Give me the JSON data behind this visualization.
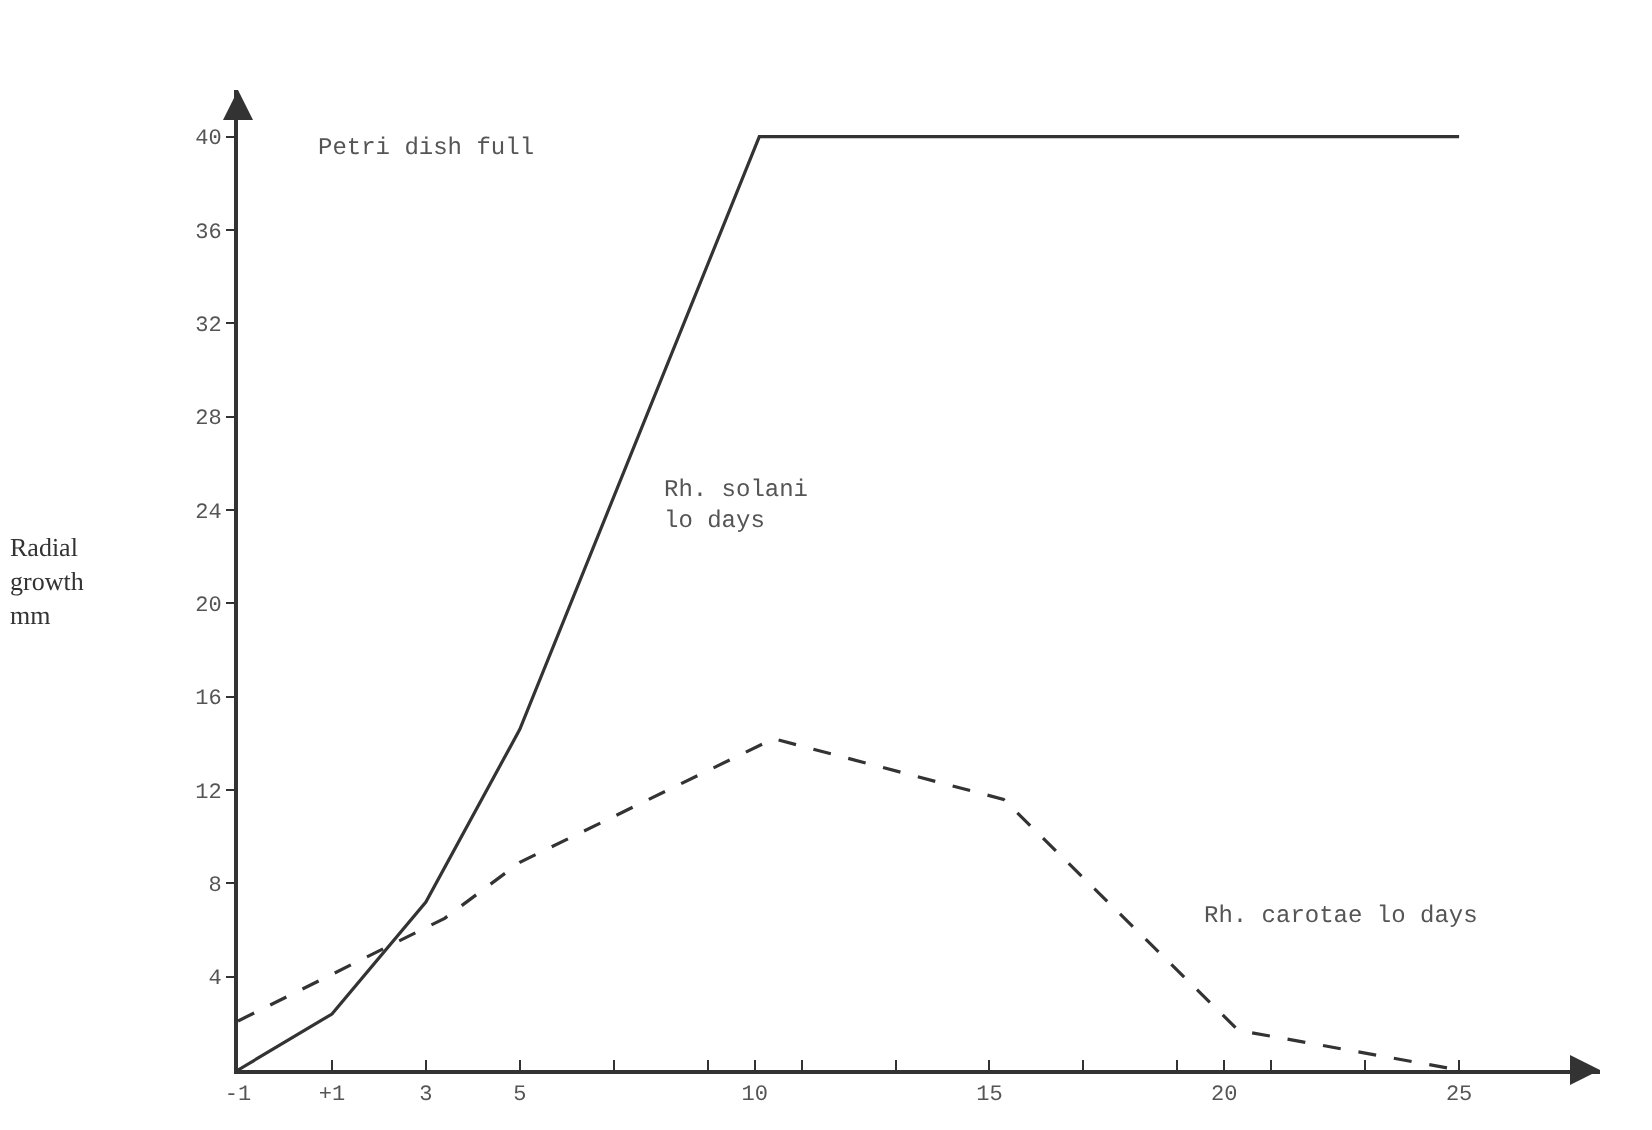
{
  "chart_data": {
    "type": "line",
    "ylabel": "Radial\ngrowth\nmm",
    "xlim": [
      -1,
      28
    ],
    "ylim": [
      0,
      42
    ],
    "xticks": [
      -1,
      {
        "value": 1,
        "label": "+1"
      },
      3,
      5,
      {
        "value": 7,
        "label": null
      },
      {
        "value": 9,
        "label": null
      },
      10,
      {
        "value": 11,
        "label": null
      },
      {
        "value": 13,
        "label": null
      },
      15,
      {
        "value": 17,
        "label": null
      },
      {
        "value": 19,
        "label": null
      },
      20,
      {
        "value": 21,
        "label": null
      },
      {
        "value": 23,
        "label": null
      },
      25
    ],
    "yticks": [
      4,
      8,
      12,
      16,
      20,
      24,
      28,
      32,
      36,
      40
    ],
    "grid": false,
    "marker": "none",
    "series": [
      {
        "color": "#333333",
        "line_style": "solid",
        "x": [
          -1,
          1,
          3,
          5,
          10.1,
          25
        ],
        "values": [
          0,
          2.4,
          7.2,
          14.6,
          40,
          40
        ]
      },
      {
        "color": "#333333",
        "line_style": "dashed",
        "x": [
          -1,
          3.4,
          5,
          10.4,
          15.3,
          20.3,
          25
        ],
        "values": [
          2.1,
          6.5,
          8.9,
          14.2,
          11.6,
          1.7,
          0
        ]
      }
    ],
    "annotations": [
      "Petri dish full",
      "Rh. solani\nlo days",
      "Rh. carotae lo days"
    ]
  }
}
